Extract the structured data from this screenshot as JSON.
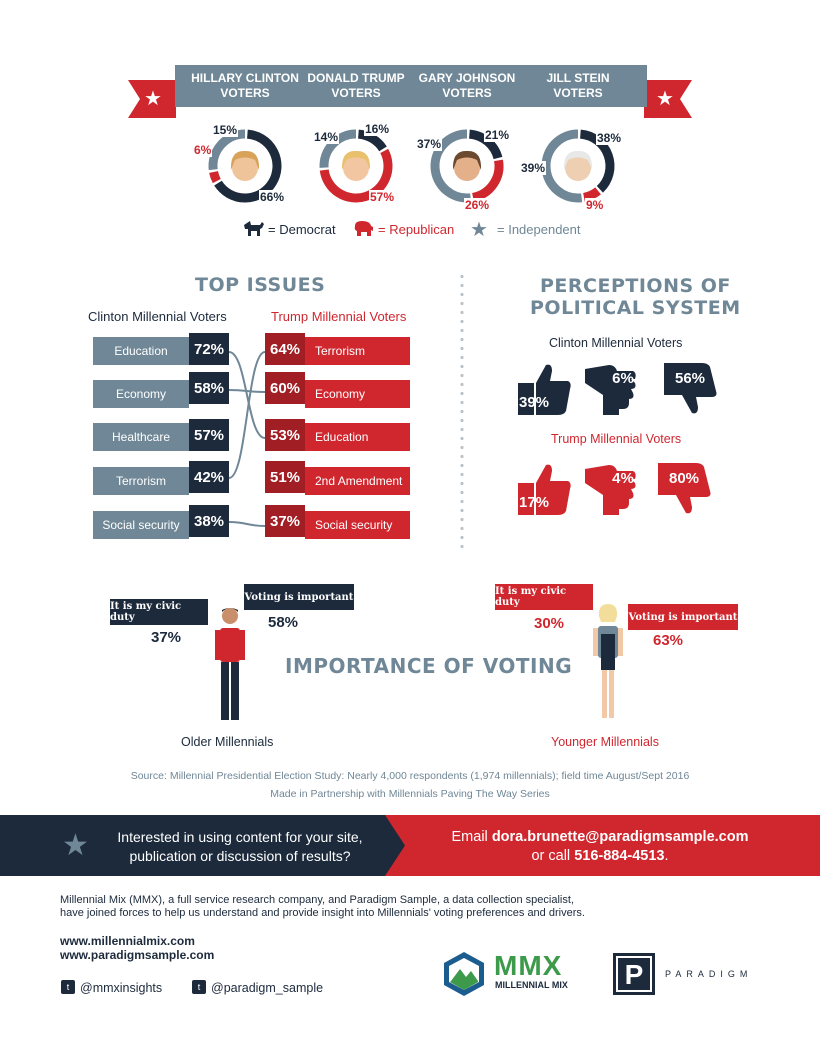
{
  "candidates": [
    {
      "name": "HILLARY CLINTON\nVOTERS",
      "line1": "HILLARY CLINTON",
      "line2": "VOTERS",
      "democrat": 66,
      "republican": 6,
      "independent": 15,
      "labels": {
        "independent": "15%",
        "republican": "6%",
        "democrat": "66%"
      }
    },
    {
      "line1": "DONALD TRUMP",
      "line2": "VOTERS",
      "democrat": 16,
      "republican": 57,
      "independent": 14,
      "labels": {
        "independent": "14%",
        "democrat": "16%",
        "republican": "57%"
      }
    },
    {
      "line1": "GARY JOHNSON",
      "line2": "VOTERS",
      "democrat": 21,
      "republican": 26,
      "independent": 37,
      "labels": {
        "independent": "37%",
        "democrat": "21%",
        "republican": "26%"
      }
    },
    {
      "line1": "JILL STEIN",
      "line2": "VOTERS",
      "democrat": 38,
      "republican": 9,
      "independent": 39,
      "labels": {
        "democrat": "38%",
        "independent": "39%",
        "republican": "9%"
      }
    }
  ],
  "legend": {
    "democrat": "= Democrat",
    "republican": "= Republican",
    "independent": "= Independent"
  },
  "colors": {
    "navy": "#1c2a3c",
    "red": "#d0272f",
    "gray": "#6f8796",
    "dark_red": "#a01e24"
  },
  "top_issues": {
    "title": "TOP ISSUES",
    "clinton_heading": "Clinton Millennial Voters",
    "trump_heading": "Trump Millennial Voters",
    "clinton": [
      {
        "label": "Education",
        "pct": "72%"
      },
      {
        "label": "Economy",
        "pct": "58%"
      },
      {
        "label": "Healthcare",
        "pct": "57%"
      },
      {
        "label": "Terrorism",
        "pct": "42%"
      },
      {
        "label": "Social security",
        "pct": "38%"
      }
    ],
    "trump": [
      {
        "label": "Terrorism",
        "pct": "64%"
      },
      {
        "label": "Economy",
        "pct": "60%"
      },
      {
        "label": "Education",
        "pct": "53%"
      },
      {
        "label": "2nd Amendment",
        "pct": "51%"
      },
      {
        "label": "Social security",
        "pct": "37%"
      }
    ]
  },
  "perceptions": {
    "title_line1": "PERCEPTIONS OF",
    "title_line2": "POLITICAL SYSTEM",
    "clinton_heading": "Clinton Millennial Voters",
    "trump_heading": "Trump Millennial Voters",
    "clinton": {
      "up": "39%",
      "side": "6%",
      "down": "56%"
    },
    "trump": {
      "up": "17%",
      "side": "4%",
      "down": "80%"
    }
  },
  "voting": {
    "title": "IMPORTANCE OF VOTING",
    "older": {
      "label": "Older Millennials",
      "civic_duty": "It is my civic duty",
      "civic_pct": "37%",
      "important": "Voting is important",
      "important_pct": "58%"
    },
    "younger": {
      "label": "Younger Millennials",
      "civic_duty": "It is my civic duty",
      "civic_pct": "30%",
      "important": "Voting is important",
      "important_pct": "63%"
    }
  },
  "source": {
    "line1": "Source:  Millennial Presidential Election Study: Nearly 4,000 respondents (1,974 millennials); field time August/Sept 2016",
    "line2": "Made in Partnership with Millennials Paving The Way Series"
  },
  "cta": {
    "left_line1": "Interested in using content for your site,",
    "left_line2": "publication or discussion of results?",
    "email_prefix": "Email ",
    "email": "dora.brunette@paradigmsample.com",
    "call_prefix": "or call ",
    "phone": "516-884-4513",
    "call_suffix": "."
  },
  "footer": {
    "about_line1": "Millennial Mix (MMX), a full service research company, and Paradigm Sample, a data collection specialist,",
    "about_line2": "have joined forces to help us understand and provide insight into Millennials' voting preferences and drivers.",
    "url1": "www.millennialmix.com",
    "url2": "www.paradigmsample.com",
    "twitter1": "@mmxinsights",
    "twitter2": "@paradigm_sample",
    "mmx_logo": "MMX",
    "mmx_sub": "MILLENNIAL MIX",
    "paradigm_letter": "P",
    "paradigm_name": "PARADIGM"
  }
}
